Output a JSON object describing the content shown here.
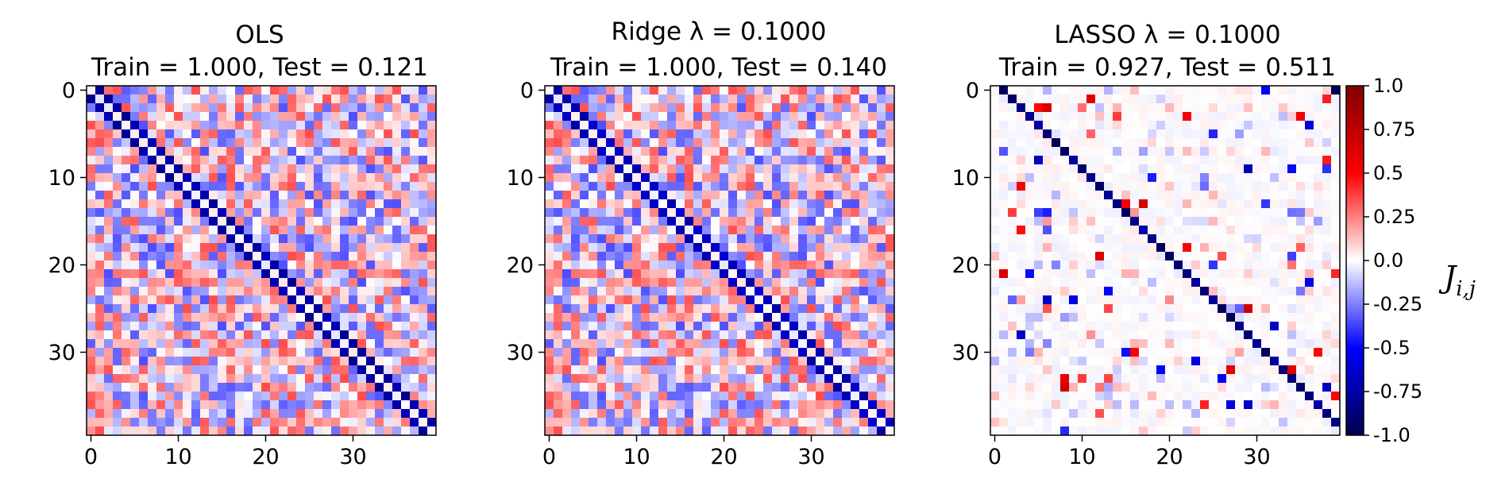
{
  "charts": [
    {
      "title_line1": "OLS",
      "title_line2": "Train = 1.000, Test = 0.121"
    },
    {
      "title_line1": "Ridge λ = 0.1000",
      "title_line2": "Train = 1.000, Test = 0.140"
    },
    {
      "title_line1": "LASSO λ = 0.1000",
      "title_line2": "Train = 0.927, Test = 0.511"
    }
  ],
  "axis_ticks": {
    "x": [
      "0",
      "10",
      "20",
      "30"
    ],
    "y": [
      "0",
      "10",
      "20",
      "30"
    ]
  },
  "colorbar": {
    "label": "J_{i,j}",
    "label_main": "J",
    "label_sub": "i,j",
    "ticks": [
      "1.0",
      "0.75",
      "0.5",
      "0.25",
      "0.0",
      "-0.25",
      "-0.5",
      "-0.75",
      "-1.0"
    ],
    "colormap": "seismic",
    "vmin": -1.0,
    "vmax": 1.0
  },
  "chart_data": [
    {
      "type": "heatmap",
      "title": "OLS\nTrain = 1.000, Test = 0.121",
      "size": 40,
      "xlim": [
        0,
        39
      ],
      "ylim": [
        0,
        39
      ],
      "diagonal": "off-diagonal pairs (i, i+1) and (i+1, i) strong negative, about -0.5 to -0.8",
      "background_range": [
        -0.35,
        0.35
      ],
      "colorbar": {
        "vmin": -1.0,
        "vmax": 1.0
      }
    },
    {
      "type": "heatmap",
      "title": "Ridge λ = 0.1000\nTrain = 1.000, Test = 0.140",
      "size": 40,
      "xlim": [
        0,
        39
      ],
      "ylim": [
        0,
        39
      ],
      "diagonal": "off-diagonal pairs (i, i+1) and (i+1, i) strong negative, about -0.5 to -0.75",
      "background_range": [
        -0.35,
        0.35
      ],
      "colorbar": {
        "vmin": -1.0,
        "vmax": 1.0
      }
    },
    {
      "type": "heatmap",
      "title": "LASSO λ = 0.1000\nTrain = 0.927, Test = 0.511",
      "size": 40,
      "xlim": [
        0,
        39
      ],
      "ylim": [
        0,
        39
      ],
      "diagonal": "single off-diagonal (i, i+1) strong negative, about -0.7 to -1.0",
      "background_range": [
        -0.2,
        0.2
      ],
      "sparse_outliers_range": [
        -0.6,
        0.85
      ],
      "colorbar": {
        "vmin": -1.0,
        "vmax": 1.0
      }
    }
  ]
}
